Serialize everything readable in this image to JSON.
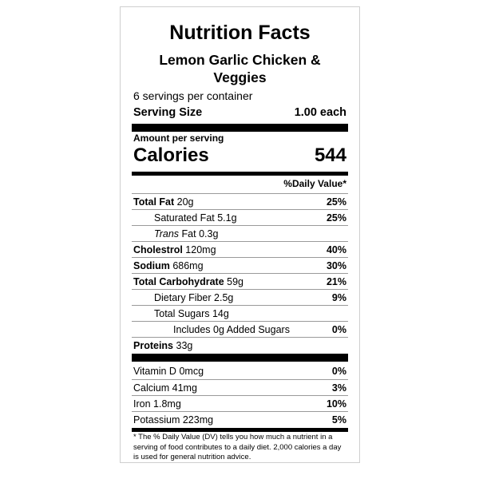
{
  "title": "Nutrition Facts",
  "product_name": "Lemon Garlic Chicken & Veggies",
  "servings_per_container": "6 servings per container",
  "serving_size": {
    "label": "Serving Size",
    "value": "1.00 each"
  },
  "amount_per_serving": "Amount per serving",
  "calories": {
    "label": "Calories",
    "value": "544"
  },
  "daily_value_header": "%Daily Value*",
  "nutrients": [
    {
      "name": "Total Fat",
      "amount": "20g",
      "dv": "25%"
    },
    {
      "name": "Saturated Fat",
      "amount": "5.1g",
      "dv": "25%"
    },
    {
      "name": "Trans",
      "name_suffix": "Fat",
      "amount": "0.3g",
      "dv": ""
    },
    {
      "name": "Cholestrol",
      "amount": "120mg",
      "dv": "40%"
    },
    {
      "name": "Sodium",
      "amount": "686mg",
      "dv": "30%"
    },
    {
      "name": "Total Carbohydrate",
      "amount": "59g",
      "dv": "21%"
    },
    {
      "name": "Dietary Fiber",
      "amount": "2.5g",
      "dv": "9%"
    },
    {
      "name": "Total Sugars",
      "amount": "14g",
      "dv": ""
    },
    {
      "name": "Includes 0g Added Sugars",
      "amount": "",
      "dv": "0%"
    },
    {
      "name": "Proteins",
      "amount": "33g",
      "dv": ""
    }
  ],
  "vitamins": [
    {
      "name": "Vitamin D",
      "amount": "0mcg",
      "dv": "0%"
    },
    {
      "name": "Calcium",
      "amount": "41mg",
      "dv": "3%"
    },
    {
      "name": "Iron",
      "amount": "1.8mg",
      "dv": "10%"
    },
    {
      "name": "Potassium",
      "amount": "223mg",
      "dv": "5%"
    }
  ],
  "footnote": "* The % Daily Value (DV) tells you how much a nutrient in a serving of food contributes to a daily diet. 2,000 calories a day is used for general nutrition advice."
}
